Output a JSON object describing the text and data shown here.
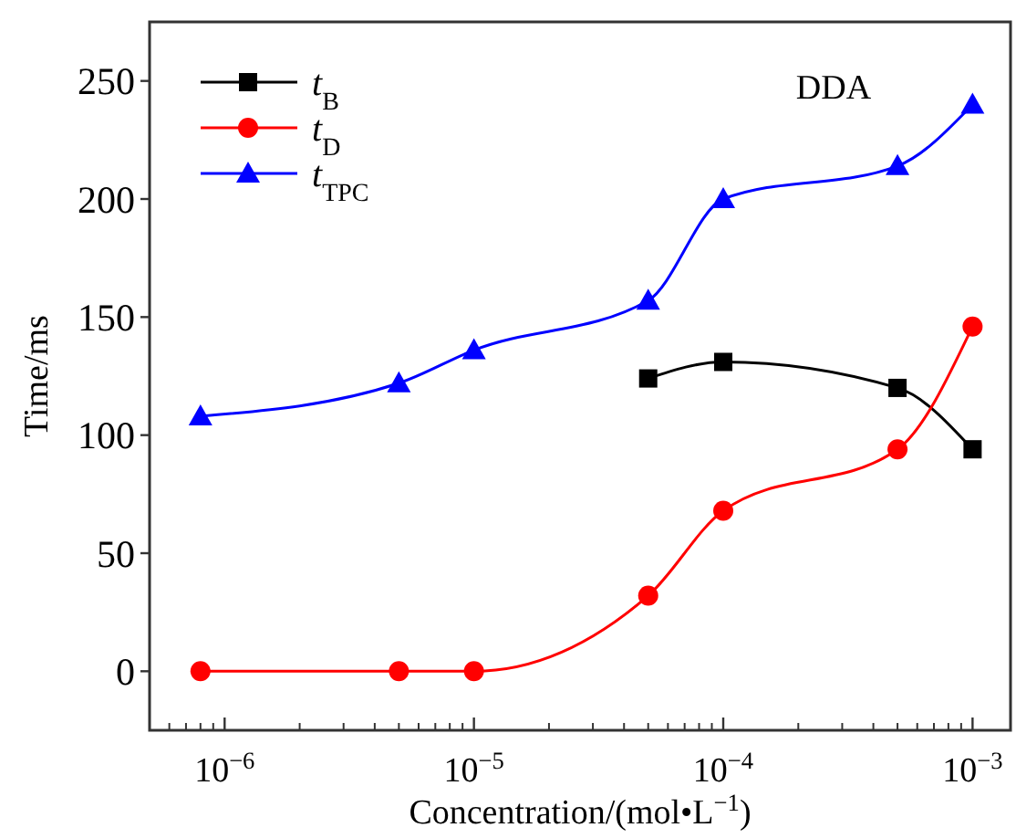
{
  "chart_data": {
    "type": "line",
    "xlabel": "Concentration/(mol•L$^{−1}$)",
    "ylabel": "Time/ms",
    "annotations": [
      "DDA"
    ],
    "x": [
      8e-07,
      5e-06,
      1e-05,
      5e-05,
      0.0001,
      0.0005,
      0.001
    ],
    "series": [
      {
        "name": "t$_{B}$",
        "color": "#000000",
        "marker": "square",
        "values": [
          null,
          null,
          null,
          124,
          131,
          120,
          94
        ]
      },
      {
        "name": "t$_{D}$",
        "color": "#ff0000",
        "marker": "circle",
        "values": [
          0,
          0,
          0,
          32,
          68,
          94,
          146
        ]
      },
      {
        "name": "t$_{TPC}$",
        "color": "#0000ff",
        "marker": "triangle",
        "values": [
          108,
          122,
          136,
          157,
          200,
          214,
          240
        ]
      }
    ],
    "log": "x",
    "xlim": [
      5e-07,
      0.00142
    ],
    "xticks": [
      {
        "value": 1e-06,
        "label": "10$^{−6}$"
      },
      {
        "value": 1e-05,
        "label": "10$^{−5}$"
      },
      {
        "value": 0.0001,
        "label": "10$^{−4}$"
      },
      {
        "value": 0.001,
        "label": "10$^{−3}$"
      }
    ],
    "ylim": [
      -25,
      275
    ],
    "yticks": [
      0,
      50,
      100,
      150,
      200,
      250
    ],
    "legend": "top left",
    "grid": false,
    "line_style": "solid"
  }
}
